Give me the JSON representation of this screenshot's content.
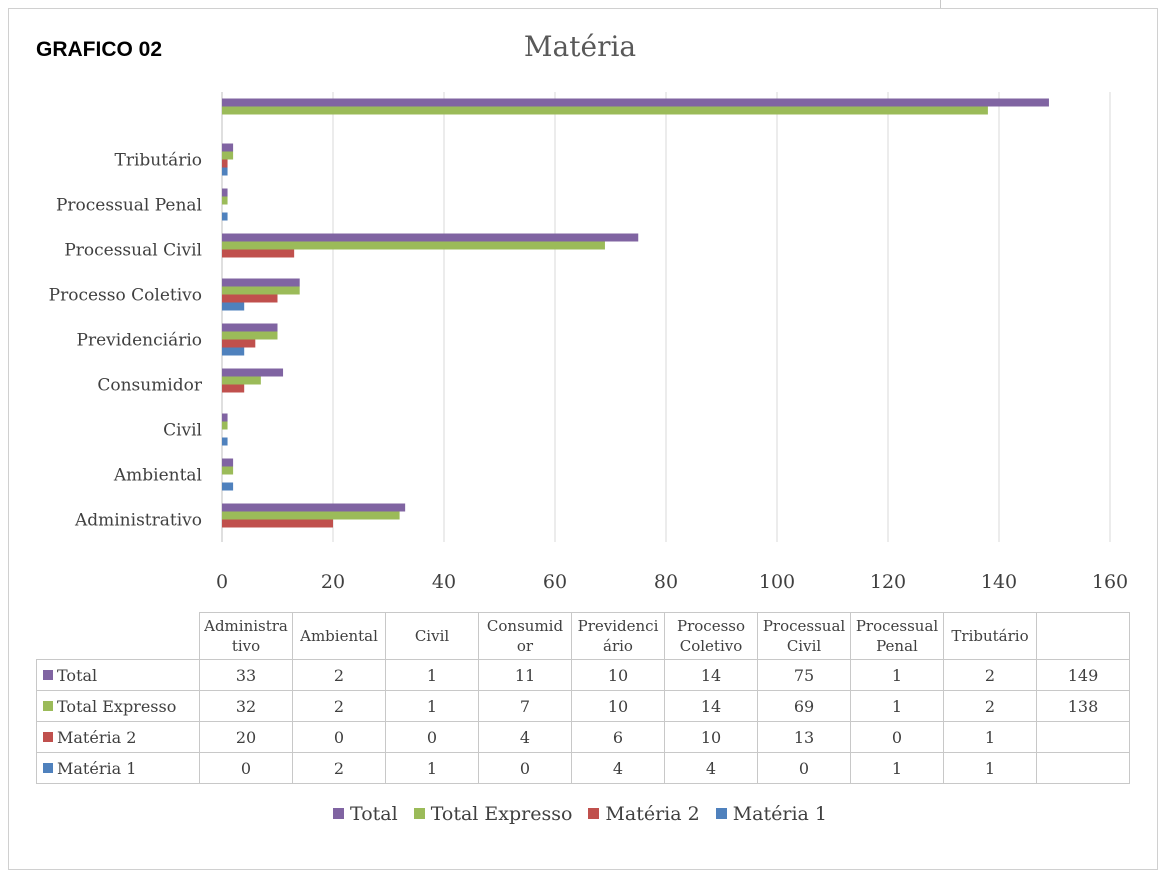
{
  "page": {
    "heading": "GRAFICO 02"
  },
  "chart_data": {
    "type": "bar",
    "orientation": "horizontal",
    "title": "Matéria",
    "categories": [
      "Administrativo",
      "Ambiental",
      "Civil",
      "Consumidor",
      "Previdenciário",
      "Processo Coletivo",
      "Processual Civil",
      "Processual Penal",
      "Tributário",
      ""
    ],
    "header_labels": [
      [
        "Administra",
        "tivo"
      ],
      [
        "Ambiental"
      ],
      [
        "Civil"
      ],
      [
        "Consumid",
        "or"
      ],
      [
        "Previdenci",
        "ário"
      ],
      [
        "Processo",
        "Coletivo"
      ],
      [
        "Processual",
        "Civil"
      ],
      [
        "Processual",
        "Penal"
      ],
      [
        "Tributário"
      ],
      [
        ""
      ]
    ],
    "x_ticks": [
      0,
      20,
      40,
      60,
      80,
      100,
      120,
      140,
      160
    ],
    "xlim": [
      0,
      160
    ],
    "grid": true,
    "legend_position": "bottom",
    "series": [
      {
        "name": "Total",
        "color": "#8064A2",
        "values": [
          33,
          2,
          1,
          11,
          10,
          14,
          75,
          1,
          2,
          149
        ]
      },
      {
        "name": "Total Expresso",
        "color": "#9BBB59",
        "values": [
          32,
          2,
          1,
          7,
          10,
          14,
          69,
          1,
          2,
          138
        ]
      },
      {
        "name": "Matéria 2",
        "color": "#C0504D",
        "values": [
          20,
          0,
          0,
          4,
          6,
          10,
          13,
          0,
          1,
          null
        ]
      },
      {
        "name": "Matéria 1",
        "color": "#4F81BD",
        "values": [
          0,
          2,
          1,
          0,
          4,
          4,
          0,
          1,
          1,
          null
        ]
      }
    ]
  }
}
